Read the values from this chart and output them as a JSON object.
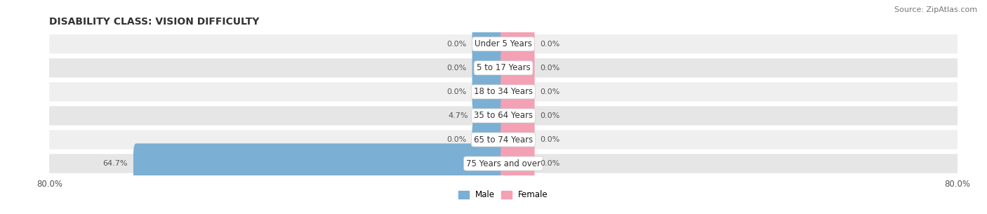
{
  "title": "DISABILITY CLASS: VISION DIFFICULTY",
  "source": "Source: ZipAtlas.com",
  "categories": [
    "Under 5 Years",
    "5 to 17 Years",
    "18 to 34 Years",
    "35 to 64 Years",
    "65 to 74 Years",
    "75 Years and over"
  ],
  "male_values": [
    0.0,
    0.0,
    0.0,
    4.7,
    0.0,
    64.7
  ],
  "female_values": [
    0.0,
    0.0,
    0.0,
    0.0,
    0.0,
    0.0
  ],
  "male_color": "#7bafd4",
  "female_color": "#f4a0b5",
  "row_bg_color": "#eeeeee",
  "axis_max": 80.0,
  "title_fontsize": 10,
  "label_fontsize": 8,
  "cat_fontsize": 8.5,
  "tick_fontsize": 8.5,
  "source_fontsize": 8,
  "stub_size": 5.0
}
